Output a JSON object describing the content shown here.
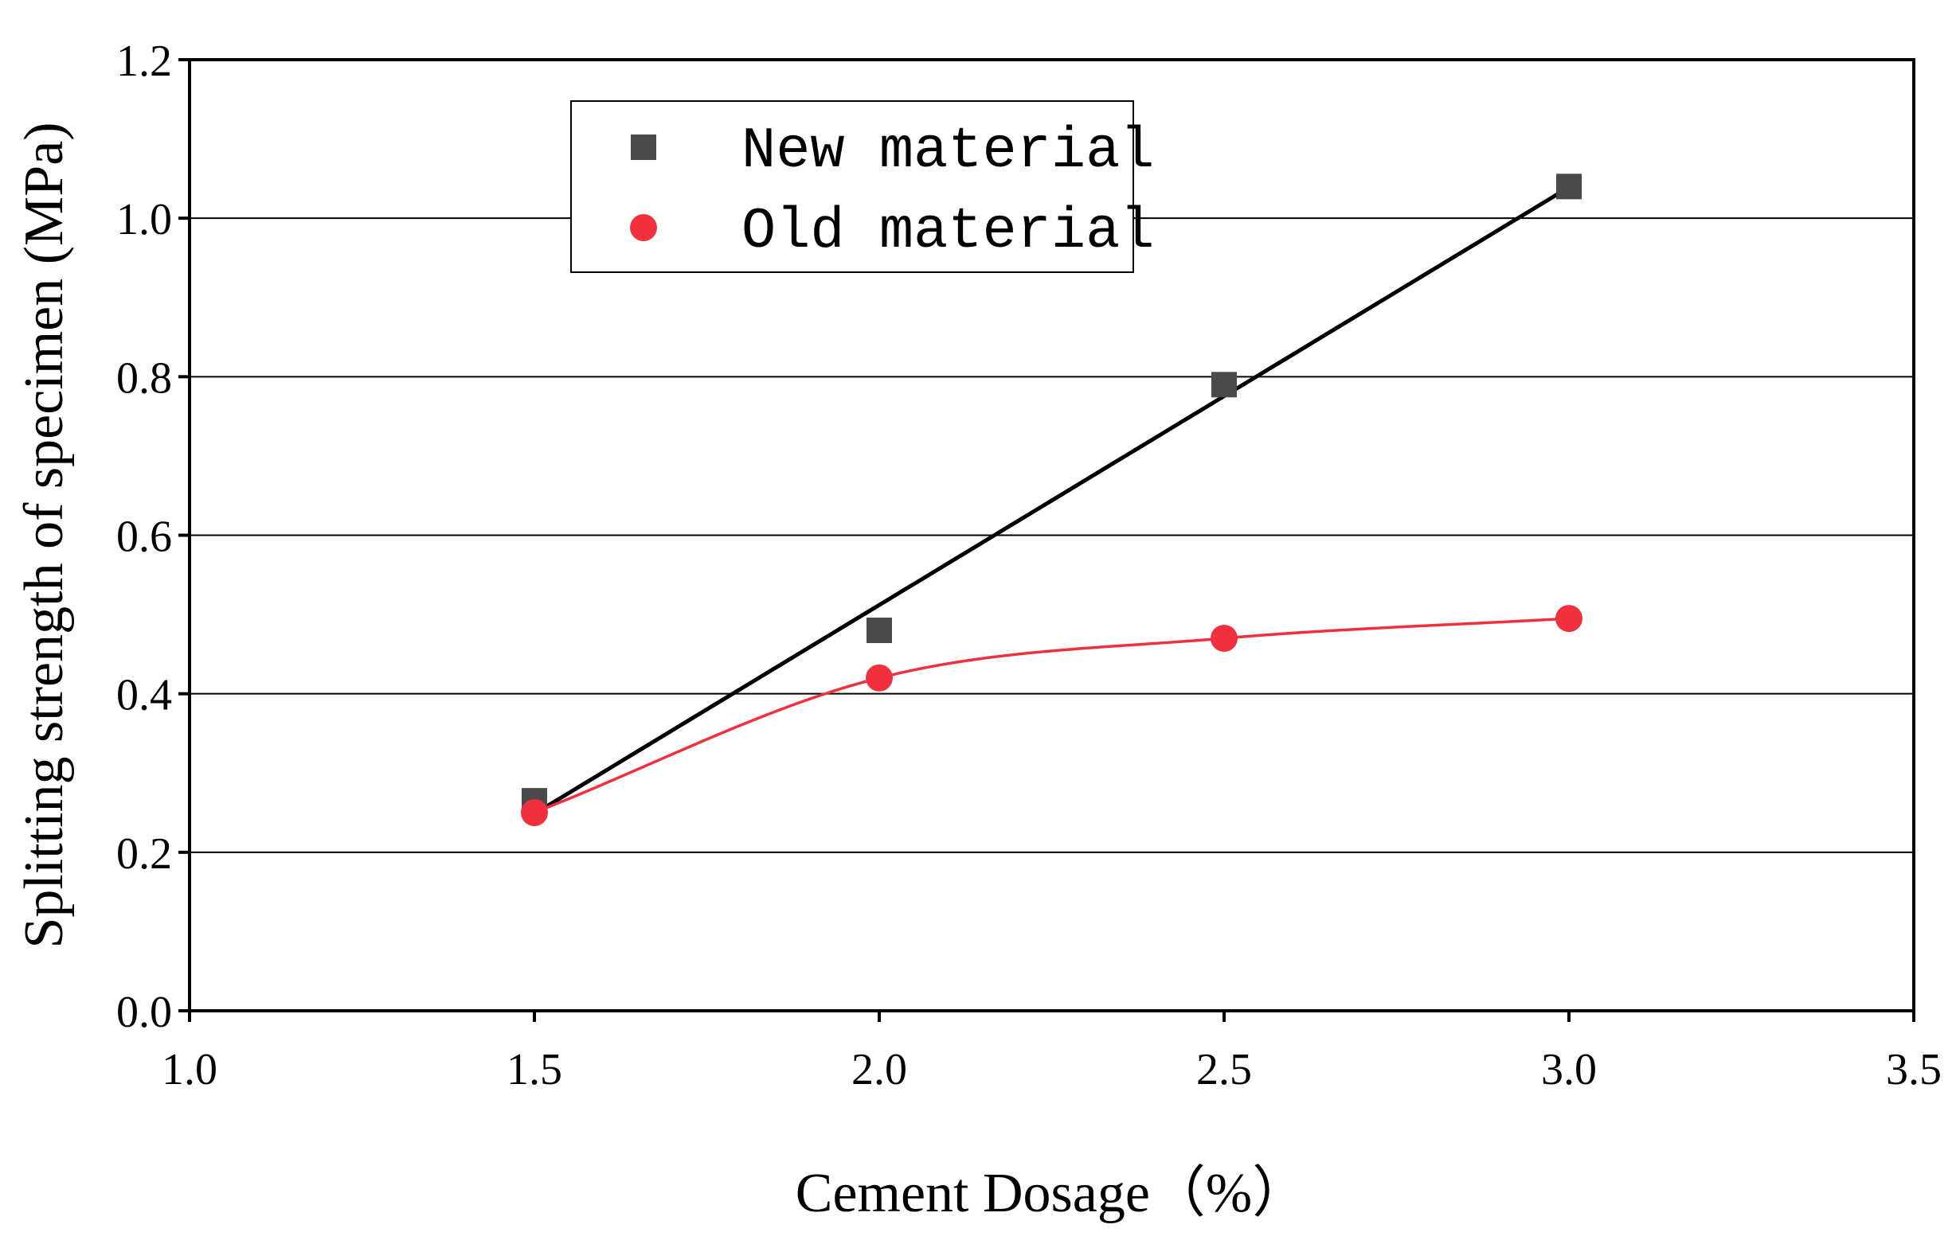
{
  "chart_data": {
    "type": "scatter",
    "title": "",
    "xlabel": "Cement Dosage（%）",
    "ylabel": "Splitting strength of specimen (MPa)",
    "xlim": [
      1.0,
      3.5
    ],
    "ylim": [
      0.0,
      1.2
    ],
    "xticks": [
      "1.0",
      "1.5",
      "2.0",
      "2.5",
      "3.0",
      "3.5"
    ],
    "yticks": [
      "0.0",
      "0.2",
      "0.4",
      "0.6",
      "0.8",
      "1.0",
      "1.2"
    ],
    "grid": "horizontal",
    "legend_position": "top-left",
    "series": [
      {
        "name": "New material",
        "marker": "square",
        "color": "#4a4a4a",
        "fit_color": "#000000",
        "fit": "linear",
        "x": [
          1.5,
          2.0,
          2.5,
          3.0
        ],
        "y": [
          0.265,
          0.48,
          0.79,
          1.04
        ]
      },
      {
        "name": "Old material",
        "marker": "circle",
        "color": "#f0313d",
        "fit_color": "#f0313d",
        "fit": "smooth",
        "x": [
          1.5,
          2.0,
          2.5,
          3.0
        ],
        "y": [
          0.25,
          0.42,
          0.47,
          0.495
        ]
      }
    ]
  }
}
